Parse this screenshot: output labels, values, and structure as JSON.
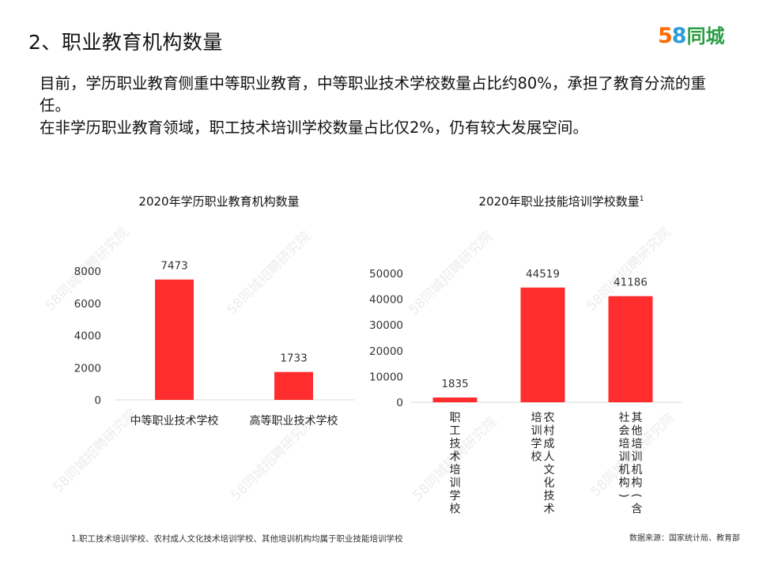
{
  "page": {
    "title": "2、职业教育机构数量",
    "logo": {
      "digit5": "5",
      "digit8": "8",
      "text": "同城"
    },
    "paragraphs": [
      "目前，学历职业教育侧重中等职业教育，中等职业技术学校数量占比约80%，承担了教育分流的重任。",
      "在非学历职业教育领域，职工技术培训学校数量占比仅2%，仍有较大发展空间。"
    ],
    "watermark": "58同城招聘研究院",
    "footnote": "1.职工技术培训学校、农村成人文化技术培训学校、其他培训机构均属于职业技能培训学校",
    "source": "数据来源：国家统计局、教育部",
    "colors": {
      "bar": "#ff2d2d",
      "axis": "#d9d9d9",
      "text": "#333333"
    }
  },
  "chart_data": [
    {
      "type": "bar",
      "title": "2020年学历职业教育机构数量",
      "categories": [
        "中等职业技术学校",
        "高等职业技术学校"
      ],
      "values": [
        7473,
        1733
      ],
      "ylim": [
        0,
        8000
      ],
      "yticks": [
        0,
        2000,
        4000,
        6000,
        8000
      ],
      "xlabel": "",
      "ylabel": "",
      "grid": false,
      "color": "#ff2d2d"
    },
    {
      "type": "bar",
      "title": "2020年职业技能培训学校数量",
      "title_superscript": "1",
      "categories": [
        "职工技术培训学校",
        "农村成人文化技术培训学校",
        "其他培训机构(含社会培训机构)"
      ],
      "values": [
        1835,
        44519,
        41186
      ],
      "ylim": [
        0,
        50000
      ],
      "yticks": [
        0,
        10000,
        20000,
        30000,
        40000,
        50000
      ],
      "xlabel": "",
      "ylabel": "",
      "grid": false,
      "color": "#ff2d2d"
    }
  ]
}
